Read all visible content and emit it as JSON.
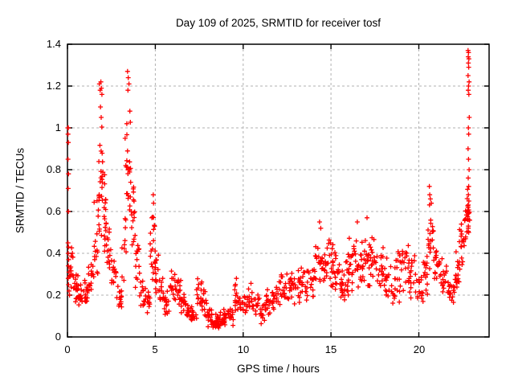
{
  "chart_data": {
    "type": "scatter",
    "title": "Day 109 of 2025, SRMTID for receiver tosf",
    "xlabel": "GPS time / hours",
    "ylabel": "SRMTID / TECUs",
    "xlim": [
      0,
      24
    ],
    "ylim": [
      0,
      1.4
    ],
    "xticks": [
      {
        "v": 0,
        "label": "0"
      },
      {
        "v": 5,
        "label": "5"
      },
      {
        "v": 10,
        "label": "10"
      },
      {
        "v": 15,
        "label": "15"
      },
      {
        "v": 20,
        "label": "20"
      }
    ],
    "yticks": [
      {
        "v": 0,
        "label": "0"
      },
      {
        "v": 0.2,
        "label": "0.2"
      },
      {
        "v": 0.4,
        "label": "0.4"
      },
      {
        "v": 0.6,
        "label": "0.6"
      },
      {
        "v": 0.8,
        "label": "0.8"
      },
      {
        "v": 1,
        "label": "1"
      },
      {
        "v": 1.2,
        "label": "1.2"
      },
      {
        "v": 1.4,
        "label": "1.4"
      }
    ],
    "grid": true,
    "legend": "none",
    "marker": "plus",
    "marker_color": "#ff0000",
    "grid_color": "#b0b0b0",
    "axis_color": "#000000",
    "background_color": "#ffffff",
    "series": [
      {
        "name": "SRMTID",
        "explicit_points": [
          [
            0.02,
            1.0
          ],
          [
            0.05,
            1.0
          ],
          [
            0.03,
            0.97
          ],
          [
            0.05,
            0.93
          ],
          [
            0.03,
            0.85
          ],
          [
            0.06,
            0.78
          ],
          [
            0.04,
            0.71
          ],
          [
            0.05,
            0.6
          ],
          [
            0.03,
            0.45
          ],
          [
            0.06,
            0.43
          ],
          [
            0.04,
            0.4
          ],
          [
            0.07,
            0.37
          ],
          [
            0.05,
            0.34
          ],
          [
            0.08,
            0.31
          ],
          [
            0.04,
            0.28
          ],
          [
            0.06,
            0.25
          ],
          [
            0.09,
            0.22
          ],
          [
            0.12,
            0.2
          ],
          [
            1.82,
            1.21
          ],
          [
            1.86,
            1.18
          ],
          [
            1.9,
            1.22
          ],
          [
            1.93,
            1.19
          ],
          [
            1.96,
            1.16
          ],
          [
            1.88,
            1.1
          ],
          [
            1.92,
            1.05
          ],
          [
            3.42,
            1.27
          ],
          [
            3.46,
            1.24
          ],
          [
            3.5,
            1.21
          ],
          [
            3.44,
            1.18
          ],
          [
            3.55,
            1.08
          ],
          [
            3.38,
            1.02
          ],
          [
            3.28,
            0.95
          ],
          [
            3.32,
            0.82
          ],
          [
            4.88,
            0.68
          ],
          [
            4.9,
            0.64
          ],
          [
            9.62,
            0.28
          ],
          [
            14.35,
            0.55
          ],
          [
            14.42,
            0.52
          ],
          [
            16.5,
            0.55
          ],
          [
            17.05,
            0.57
          ],
          [
            20.6,
            0.72
          ],
          [
            20.62,
            0.68
          ],
          [
            20.66,
            0.66
          ],
          [
            22.8,
            1.37
          ],
          [
            22.83,
            1.36
          ],
          [
            22.81,
            1.34
          ],
          [
            22.85,
            1.33
          ],
          [
            22.82,
            1.31
          ],
          [
            22.84,
            1.29
          ],
          [
            22.8,
            1.25
          ],
          [
            22.86,
            1.22
          ],
          [
            22.83,
            1.2
          ],
          [
            22.81,
            1.18
          ],
          [
            22.85,
            1.16
          ],
          [
            22.87,
            1.05
          ],
          [
            22.82,
            1.0
          ],
          [
            22.84,
            0.97
          ],
          [
            22.8,
            0.9
          ],
          [
            22.83,
            0.85
          ],
          [
            22.86,
            0.8
          ],
          [
            22.81,
            0.76
          ],
          [
            22.84,
            0.72
          ],
          [
            22.82,
            0.68
          ],
          [
            22.85,
            0.65
          ],
          [
            22.8,
            0.62
          ],
          [
            22.83,
            0.59
          ],
          [
            22.86,
            0.56
          ],
          [
            22.82,
            0.53
          ],
          [
            22.84,
            0.5
          ]
        ],
        "density_bins": [
          [
            0.1,
            0.35,
            0.18,
            0.48,
            14
          ],
          [
            0.35,
            0.6,
            0.14,
            0.32,
            14
          ],
          [
            0.6,
            0.9,
            0.12,
            0.26,
            16
          ],
          [
            0.9,
            1.2,
            0.13,
            0.28,
            16
          ],
          [
            1.2,
            1.5,
            0.15,
            0.38,
            14
          ],
          [
            1.5,
            1.75,
            0.25,
            0.75,
            14
          ],
          [
            1.75,
            2.0,
            0.4,
            1.05,
            24
          ],
          [
            2.0,
            2.2,
            0.3,
            0.85,
            16
          ],
          [
            2.2,
            2.5,
            0.25,
            0.58,
            16
          ],
          [
            2.5,
            2.8,
            0.2,
            0.42,
            14
          ],
          [
            2.8,
            3.1,
            0.12,
            0.25,
            14
          ],
          [
            3.1,
            3.35,
            0.2,
            0.6,
            10
          ],
          [
            3.35,
            3.6,
            0.45,
            1.2,
            20
          ],
          [
            3.6,
            3.85,
            0.3,
            0.8,
            16
          ],
          [
            3.85,
            4.1,
            0.2,
            0.5,
            14
          ],
          [
            4.1,
            4.45,
            0.12,
            0.3,
            14
          ],
          [
            4.45,
            4.7,
            0.1,
            0.22,
            12
          ],
          [
            4.7,
            5.0,
            0.25,
            0.62,
            20
          ],
          [
            5.0,
            5.2,
            0.18,
            0.42,
            12
          ],
          [
            5.2,
            5.5,
            0.12,
            0.3,
            14
          ],
          [
            5.5,
            5.8,
            0.08,
            0.22,
            14
          ],
          [
            5.8,
            6.15,
            0.14,
            0.35,
            16
          ],
          [
            6.15,
            6.45,
            0.12,
            0.3,
            14
          ],
          [
            6.45,
            6.75,
            0.08,
            0.25,
            14
          ],
          [
            6.75,
            7.05,
            0.05,
            0.17,
            14
          ],
          [
            7.05,
            7.35,
            0.05,
            0.15,
            14
          ],
          [
            7.35,
            7.65,
            0.09,
            0.3,
            14
          ],
          [
            7.65,
            7.95,
            0.07,
            0.24,
            14
          ],
          [
            7.95,
            8.25,
            0.04,
            0.16,
            16
          ],
          [
            8.25,
            8.55,
            0.03,
            0.12,
            16
          ],
          [
            8.55,
            8.85,
            0.03,
            0.12,
            16
          ],
          [
            8.85,
            9.15,
            0.04,
            0.14,
            16
          ],
          [
            9.15,
            9.45,
            0.05,
            0.16,
            14
          ],
          [
            9.45,
            9.8,
            0.1,
            0.27,
            14
          ],
          [
            9.8,
            10.2,
            0.08,
            0.22,
            16
          ],
          [
            10.2,
            10.6,
            0.1,
            0.26,
            16
          ],
          [
            10.6,
            11.0,
            0.08,
            0.22,
            14
          ],
          [
            11.0,
            11.3,
            0.05,
            0.18,
            14
          ],
          [
            11.3,
            11.7,
            0.1,
            0.26,
            16
          ],
          [
            11.7,
            12.1,
            0.12,
            0.28,
            16
          ],
          [
            12.1,
            12.5,
            0.14,
            0.33,
            16
          ],
          [
            12.5,
            12.9,
            0.15,
            0.35,
            16
          ],
          [
            12.9,
            13.3,
            0.14,
            0.34,
            16
          ],
          [
            13.3,
            13.7,
            0.16,
            0.36,
            16
          ],
          [
            13.7,
            14.1,
            0.16,
            0.36,
            16
          ],
          [
            14.1,
            14.5,
            0.2,
            0.52,
            18
          ],
          [
            14.5,
            14.8,
            0.18,
            0.44,
            16
          ],
          [
            14.8,
            15.15,
            0.2,
            0.52,
            18
          ],
          [
            15.15,
            15.5,
            0.18,
            0.45,
            16
          ],
          [
            15.5,
            15.8,
            0.14,
            0.36,
            16
          ],
          [
            15.8,
            16.0,
            0.15,
            0.4,
            12
          ],
          [
            16.0,
            16.4,
            0.18,
            0.52,
            18
          ],
          [
            16.4,
            16.8,
            0.2,
            0.48,
            18
          ],
          [
            16.8,
            17.2,
            0.2,
            0.53,
            18
          ],
          [
            17.2,
            17.6,
            0.2,
            0.52,
            18
          ],
          [
            17.6,
            18.0,
            0.18,
            0.45,
            16
          ],
          [
            18.0,
            18.4,
            0.15,
            0.4,
            16
          ],
          [
            18.4,
            18.8,
            0.1,
            0.38,
            16
          ],
          [
            18.8,
            19.2,
            0.15,
            0.45,
            16
          ],
          [
            19.2,
            19.5,
            0.2,
            0.48,
            16
          ],
          [
            19.5,
            19.9,
            0.15,
            0.4,
            14
          ],
          [
            19.9,
            20.25,
            0.13,
            0.3,
            14
          ],
          [
            20.25,
            20.5,
            0.18,
            0.45,
            14
          ],
          [
            20.5,
            20.85,
            0.3,
            0.66,
            20
          ],
          [
            20.85,
            21.2,
            0.22,
            0.45,
            16
          ],
          [
            21.2,
            21.6,
            0.18,
            0.4,
            16
          ],
          [
            21.6,
            22.0,
            0.14,
            0.3,
            16
          ],
          [
            22.0,
            22.3,
            0.18,
            0.42,
            18
          ],
          [
            22.3,
            22.6,
            0.28,
            0.6,
            18
          ],
          [
            22.6,
            22.82,
            0.45,
            0.7,
            16
          ],
          [
            22.75,
            22.9,
            0.5,
            0.75,
            8
          ]
        ]
      }
    ]
  }
}
